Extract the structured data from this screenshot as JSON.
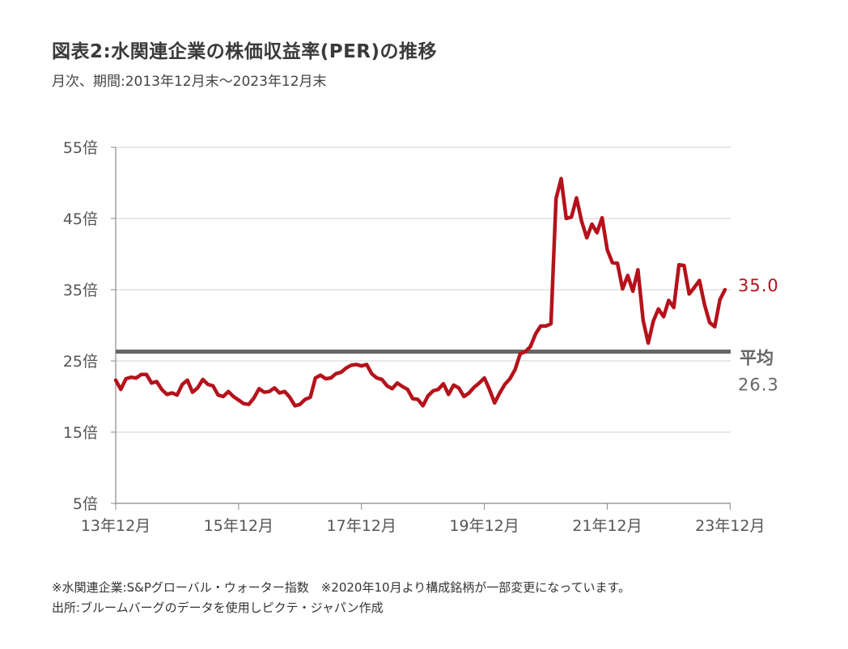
{
  "header": {
    "title": "図表2:水関連企業の株価収益率(PER)の推移",
    "subtitle": "月次、期間:2013年12月末～2023年12月末"
  },
  "colors": {
    "series": "#b5121b",
    "average": "#666666",
    "grid": "#d0d0d0",
    "axis": "#888888"
  },
  "chart_data": {
    "type": "line",
    "ylim": [
      5,
      55
    ],
    "y_ticks": [
      5,
      15,
      25,
      35,
      45,
      55
    ],
    "y_tick_labels": [
      "5倍",
      "15倍",
      "25倍",
      "35倍",
      "45倍",
      "55倍"
    ],
    "x_ticks": [
      "13年12月",
      "15年12月",
      "17年12月",
      "19年12月",
      "21年12月",
      "23年12月"
    ],
    "x_start": "2013-12",
    "x_end": "2023-12",
    "grid": true,
    "series": [
      {
        "values": [
          22.3,
          21.0,
          22.5,
          22.7,
          22.6,
          23.1,
          23.1,
          21.9,
          22.1,
          21.0,
          20.3,
          20.5,
          20.2,
          21.7,
          22.3,
          20.6,
          21.2,
          22.4,
          21.7,
          21.5,
          20.2,
          20.0,
          20.7,
          20.0,
          19.5,
          19.0,
          18.9,
          19.8,
          21.1,
          20.6,
          20.7,
          21.2,
          20.5,
          20.7,
          19.9,
          18.7,
          18.9,
          19.6,
          19.9,
          22.6,
          23.0,
          22.5,
          22.6,
          23.2,
          23.4,
          24.0,
          24.4,
          24.5,
          24.3,
          24.5,
          23.2,
          22.6,
          22.4,
          21.5,
          21.1,
          21.9,
          21.4,
          21.0,
          19.7,
          19.6,
          18.7,
          20.1,
          20.8,
          21.0,
          21.8,
          20.3,
          21.6,
          21.2,
          20.0,
          20.5,
          21.3,
          21.9,
          22.6,
          21.0,
          19.1,
          20.5,
          21.7,
          22.5,
          23.8,
          26.0,
          26.3,
          27.0,
          28.8,
          29.9,
          29.9,
          30.2,
          47.8,
          50.6,
          45.0,
          45.2,
          47.9,
          44.6,
          42.3,
          44.2,
          43.0,
          45.1,
          40.6,
          38.8,
          38.7,
          35.1,
          37.0,
          34.8,
          37.8,
          30.7,
          27.5,
          30.6,
          32.3,
          31.2,
          33.5,
          32.5,
          38.5,
          38.4,
          34.4,
          35.3,
          36.3,
          32.9,
          30.4,
          29.8,
          33.6,
          35.0
        ],
        "end_label": "35.0"
      }
    ],
    "average": {
      "value": 26.3,
      "label": "平均",
      "value_label": "26.3"
    }
  },
  "footnotes": [
    "※水関連企業:S&Pグローバル・ウォーター指数　※2020年10月より構成銘柄が一部変更になっています。",
    "出所:ブルームバーグのデータを使用しピクテ・ジャパン作成"
  ]
}
